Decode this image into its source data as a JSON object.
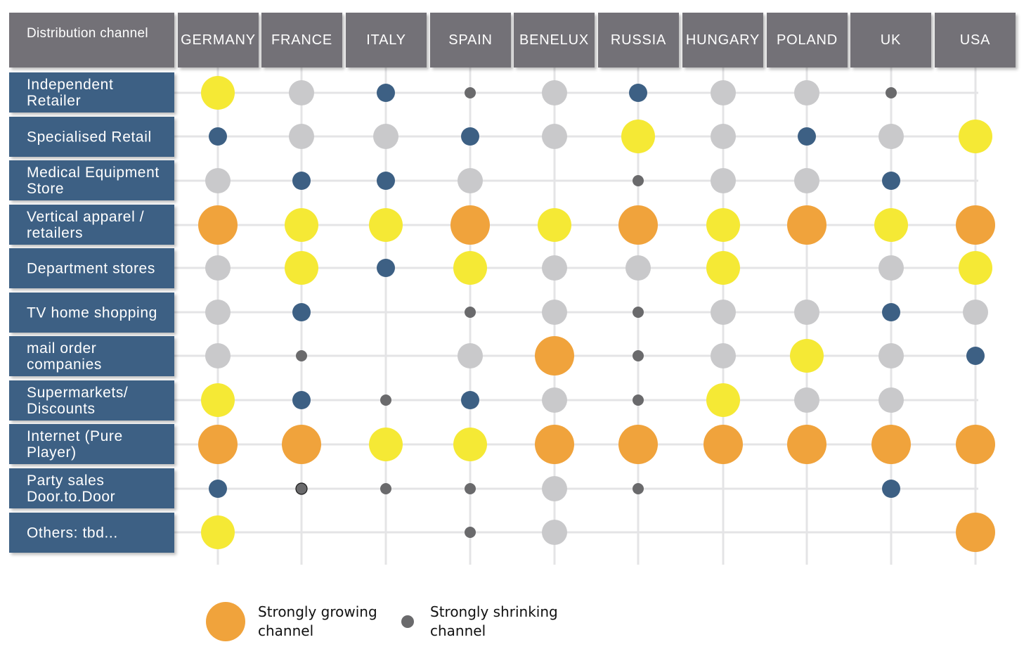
{
  "chart_data": {
    "type": "matrix",
    "corner_label": "Distribution channel",
    "columns": [
      "GERMANY",
      "FRANCE",
      "ITALY",
      "SPAIN",
      "BENELUX",
      "RUSSIA",
      "HUNGARY",
      "POLAND",
      "UK",
      "USA"
    ],
    "rows": [
      "Independent Retailer",
      "Specialised Retail",
      "Medical Equipment Store",
      "Vertical apparel / retailers",
      "Department stores",
      "TV home shopping",
      "mail order companies",
      "Supermarkets/ Discounts",
      "Internet (Pure Player)",
      "Party sales Door.to.Door",
      "Others: tbd..."
    ],
    "levels": {
      "growing_strong": {
        "color": "#f0a33c",
        "description": "Strongly growing channel"
      },
      "growing": {
        "color": "#f5e935"
      },
      "stable": {
        "color": "#c9c9cb"
      },
      "shrinking": {
        "color": "#3d6084"
      },
      "shrinking_strong": {
        "color": "#6a6a6c",
        "description": "Strongly shrinking channel"
      }
    },
    "cells": [
      [
        "growing",
        "stable",
        "shrinking",
        "shrinking_strong",
        "stable",
        "shrinking",
        "stable",
        "stable",
        "shrinking_strong",
        null
      ],
      [
        "shrinking",
        "stable",
        "stable",
        "shrinking",
        "stable",
        "growing",
        "stable",
        "shrinking",
        "stable",
        "growing"
      ],
      [
        "stable",
        "shrinking",
        "shrinking",
        "stable",
        null,
        "shrinking_strong",
        "stable",
        "stable",
        "shrinking",
        null
      ],
      [
        "growing_strong",
        "growing",
        "growing",
        "growing_strong",
        "growing",
        "growing_strong",
        "growing",
        "growing_strong",
        "growing",
        "growing_strong"
      ],
      [
        "stable",
        "growing",
        "shrinking",
        "growing",
        "stable",
        "stable",
        "growing",
        null,
        "stable",
        "growing"
      ],
      [
        "stable",
        "shrinking",
        null,
        "shrinking_strong",
        "stable",
        "shrinking_strong",
        "stable",
        "stable",
        "shrinking",
        "stable"
      ],
      [
        "stable",
        "shrinking_strong",
        null,
        "stable",
        "growing_strong",
        "shrinking_strong",
        "stable",
        "growing",
        "stable",
        "shrinking"
      ],
      [
        "growing",
        "shrinking",
        "shrinking_strong",
        "shrinking",
        "stable",
        "shrinking_strong",
        "growing",
        "stable",
        "stable",
        null
      ],
      [
        "growing_strong",
        "growing_strong",
        "growing",
        "growing",
        "growing_strong",
        "growing_strong",
        "growing_strong",
        "growing_strong",
        "growing_strong",
        "growing_strong"
      ],
      [
        "shrinking",
        "shrinking_strong",
        "shrinking_strong",
        "shrinking_strong",
        "stable",
        "shrinking_strong",
        null,
        null,
        "shrinking",
        null
      ],
      [
        "growing",
        null,
        null,
        "shrinking_strong",
        "stable",
        null,
        null,
        null,
        null,
        "growing_strong"
      ]
    ],
    "legend": [
      {
        "level": "growing_strong",
        "label": "Strongly growing channel"
      },
      {
        "level": "shrinking_strong",
        "label": "Strongly shrinking channel"
      }
    ]
  }
}
